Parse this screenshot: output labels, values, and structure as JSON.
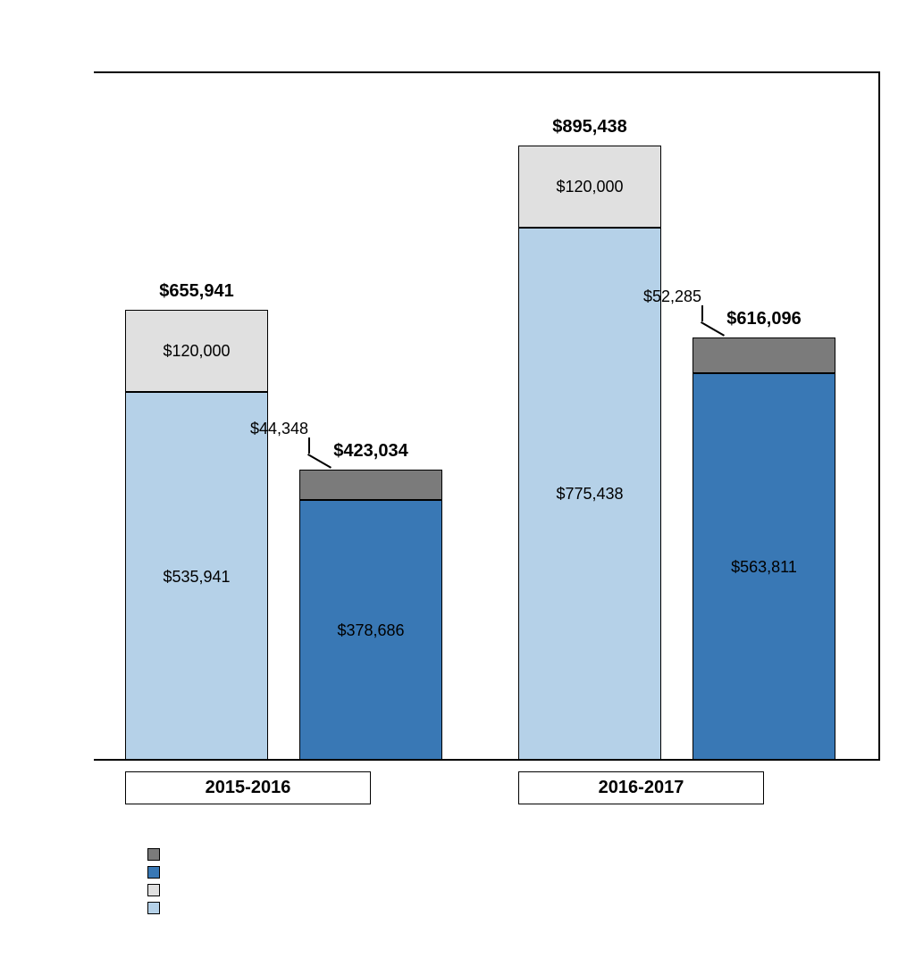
{
  "chart": {
    "type": "stacked-bar",
    "background_color": "#ffffff",
    "border_color": "#000000",
    "ylim": [
      0,
      1000000
    ],
    "ytick_step": 100000,
    "colors": {
      "other_expenditures": "#7b7b7b",
      "salaries_actual": "#3978b5",
      "internal_services": "#e0e0e0",
      "salaries_planned": "#b5d1e8"
    },
    "groups": [
      {
        "label": "2015-2016",
        "bars": [
          {
            "type": "planned",
            "total": 655941,
            "total_label": "$655,941",
            "segments": [
              {
                "key": "salaries_planned",
                "value": 535941,
                "label": "$535,941"
              },
              {
                "key": "internal_services",
                "value": 120000,
                "label": "$120,000"
              }
            ]
          },
          {
            "type": "actual",
            "total": 423034,
            "total_label": "$423,034",
            "callout": {
              "value": 44348,
              "label": "$44,348"
            },
            "segments": [
              {
                "key": "salaries_actual",
                "value": 378686,
                "label": "$378,686"
              },
              {
                "key": "other_expenditures",
                "value": 44348,
                "label": ""
              }
            ]
          }
        ]
      },
      {
        "label": "2016-2017",
        "bars": [
          {
            "type": "planned",
            "total": 895438,
            "total_label": "$895,438",
            "segments": [
              {
                "key": "salaries_planned",
                "value": 775438,
                "label": "$775,438"
              },
              {
                "key": "internal_services",
                "value": 120000,
                "label": "$120,000"
              }
            ]
          },
          {
            "type": "actual",
            "total": 616096,
            "total_label": "$616,096",
            "callout": {
              "value": 52285,
              "label": "$52,285"
            },
            "segments": [
              {
                "key": "salaries_actual",
                "value": 563811,
                "label": "$563,811"
              },
              {
                "key": "other_expenditures",
                "value": 52285,
                "label": ""
              }
            ]
          }
        ]
      }
    ],
    "legend": [
      {
        "color_key": "other_expenditures",
        "label": ""
      },
      {
        "color_key": "salaries_actual",
        "label": ""
      },
      {
        "color_key": "internal_services",
        "label": ""
      },
      {
        "color_key": "salaries_planned",
        "label": ""
      }
    ]
  }
}
